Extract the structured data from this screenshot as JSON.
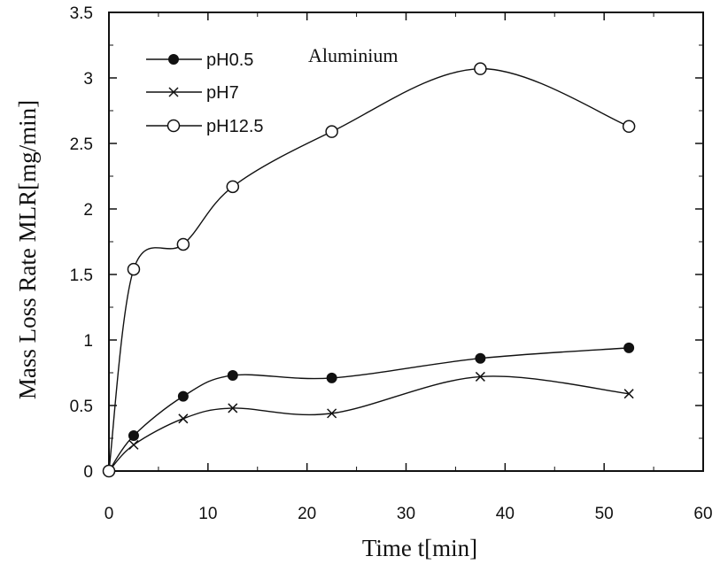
{
  "chart_data": {
    "type": "line",
    "title": "",
    "annotation": "Aluminium",
    "xlabel": "Time t[min]",
    "ylabel": "Mass Loss Rate  MLR[mg/min]",
    "xlim": [
      0,
      60
    ],
    "ylim": [
      0,
      3.5
    ],
    "xticks": [
      "0",
      "10",
      "20",
      "30",
      "40",
      "50",
      "60"
    ],
    "yticks": [
      "0",
      "0.5",
      "1",
      "1.5",
      "2",
      "2.5",
      "3",
      "3.5"
    ],
    "grid": false,
    "legend_position": "top-left",
    "series": [
      {
        "name": "pH0.5",
        "marker": "filled-circle",
        "x": [
          0,
          2.5,
          7.5,
          12.5,
          22.5,
          37.5,
          52.5
        ],
        "y": [
          0,
          0.27,
          0.57,
          0.73,
          0.71,
          0.86,
          0.94
        ]
      },
      {
        "name": "pH7",
        "marker": "cross",
        "x": [
          0,
          2.5,
          7.5,
          12.5,
          22.5,
          37.5,
          52.5
        ],
        "y": [
          0,
          0.2,
          0.4,
          0.48,
          0.44,
          0.72,
          0.59
        ]
      },
      {
        "name": "pH12.5",
        "marker": "open-circle",
        "x": [
          0,
          2.5,
          7.5,
          12.5,
          22.5,
          37.5,
          52.5
        ],
        "y": [
          0,
          1.54,
          1.73,
          2.17,
          2.59,
          3.07,
          2.63
        ]
      }
    ]
  }
}
